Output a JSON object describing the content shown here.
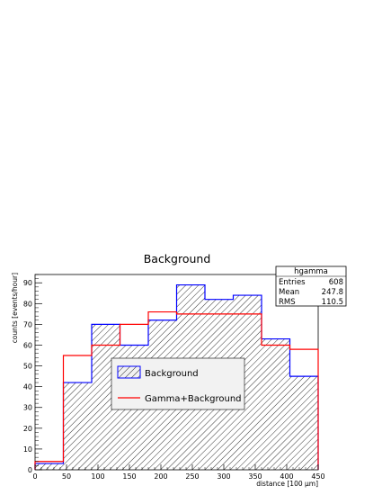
{
  "chart_data": {
    "type": "histogram",
    "title": "Background",
    "xlabel": "distance [100 µm]",
    "ylabel": "counts [events/hour]",
    "xlim": [
      0,
      450
    ],
    "ylim": [
      0,
      94
    ],
    "bin_edges": [
      0,
      45,
      90,
      135,
      180,
      225,
      270,
      315,
      360,
      405,
      450
    ],
    "x_ticks": [
      0,
      50,
      100,
      150,
      200,
      250,
      300,
      350,
      400,
      450
    ],
    "y_ticks": [
      0,
      10,
      20,
      30,
      40,
      50,
      60,
      70,
      80,
      90
    ],
    "series": [
      {
        "name": "Background",
        "color": "#0000ff",
        "hatched": true,
        "values": [
          3,
          42,
          70,
          60,
          72,
          89,
          82,
          84,
          63,
          45
        ]
      },
      {
        "name": "Gamma+Background",
        "color": "#ff0000",
        "hatched": false,
        "values": [
          4,
          55,
          60,
          70,
          76,
          75,
          75,
          75,
          60,
          58
        ]
      }
    ],
    "stats_box": {
      "title": "hgamma",
      "rows": [
        {
          "label": "Entries",
          "value": "608"
        },
        {
          "label": "Mean",
          "value": "247.8"
        },
        {
          "label": "RMS",
          "value": "110.5"
        }
      ]
    },
    "legend": {
      "placement": "center",
      "entries": [
        "Background",
        "Gamma+Background"
      ]
    }
  }
}
